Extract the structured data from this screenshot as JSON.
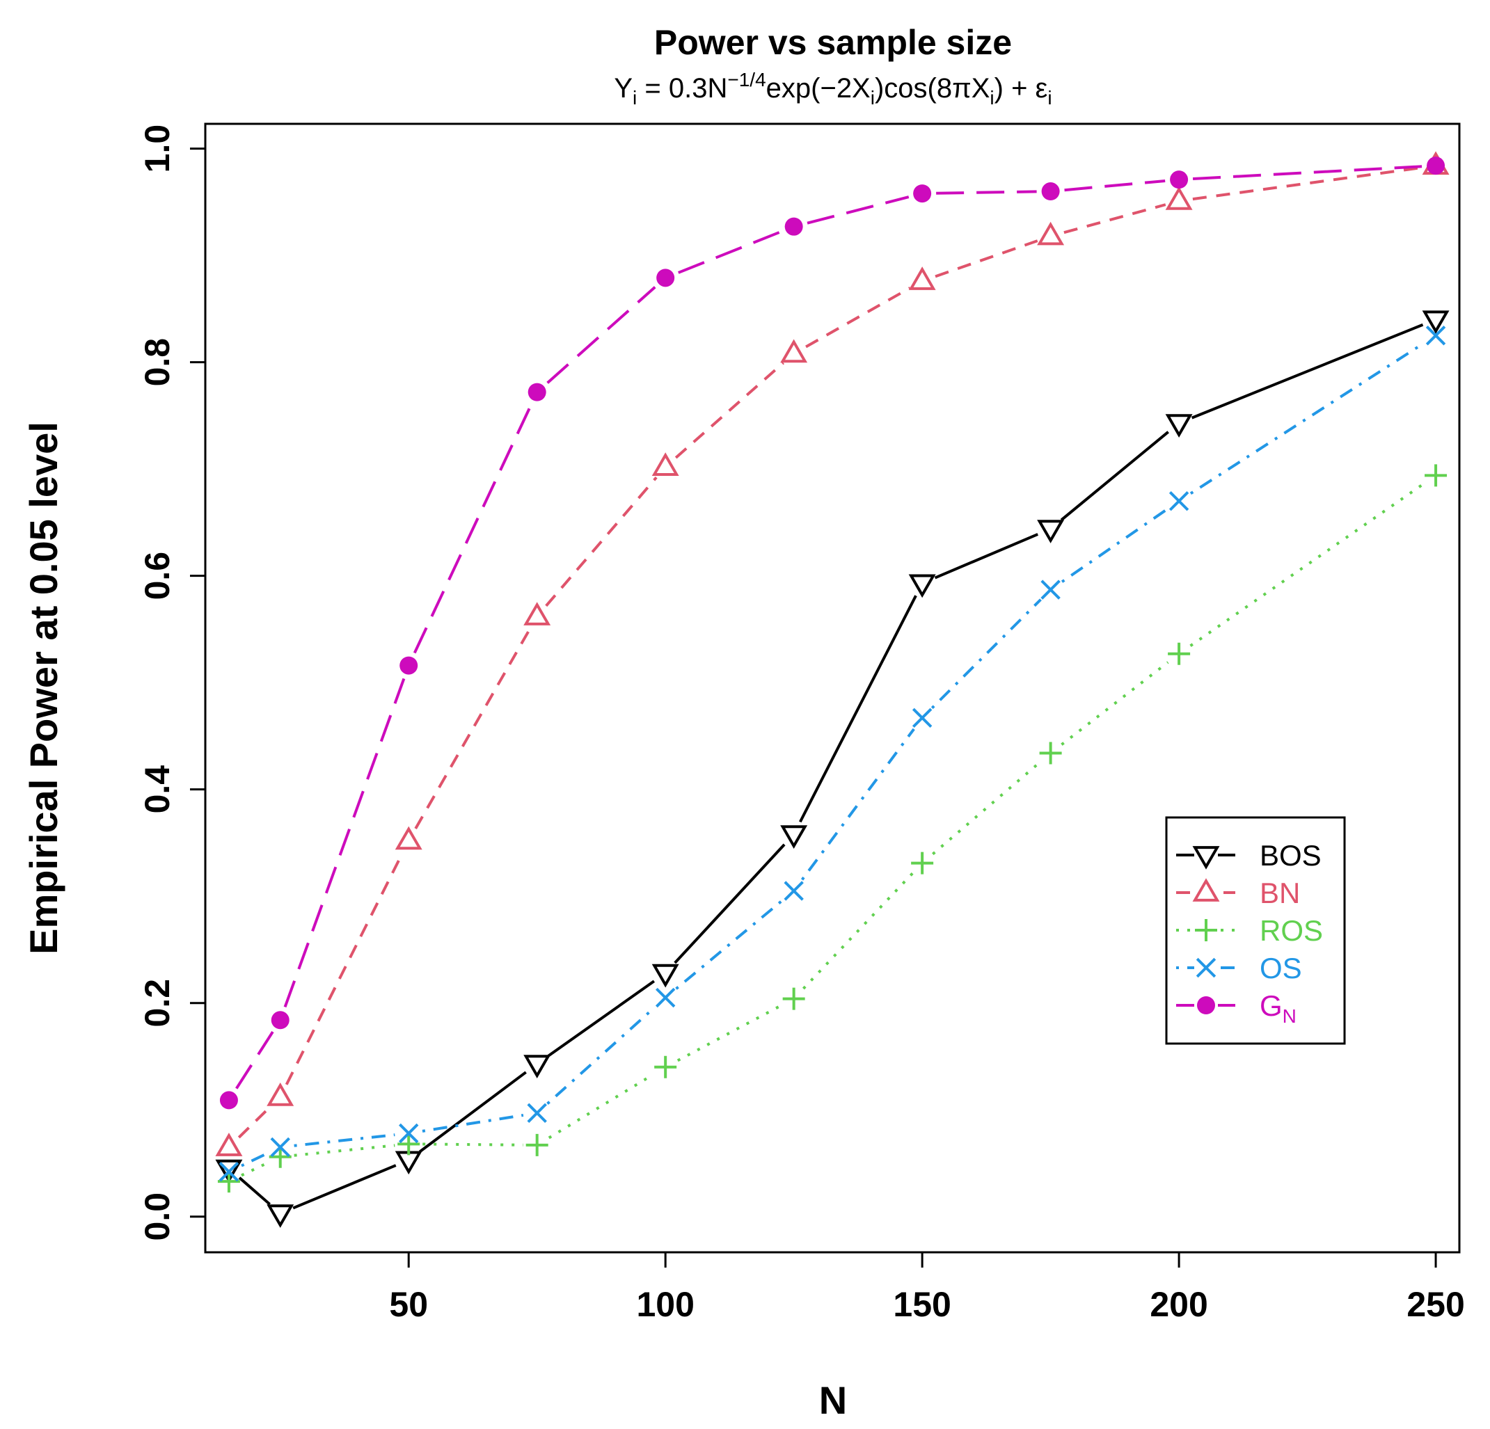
{
  "chart_data": {
    "type": "line",
    "title": "Power vs sample size",
    "subtitle": {
      "parts": [
        {
          "t": "Y"
        },
        {
          "t": "i",
          "sub": true
        },
        {
          "t": " = 0.3N"
        },
        {
          "t": "−1/4",
          "sup": true
        },
        {
          "t": "exp(−2X"
        },
        {
          "t": "i",
          "sub": true
        },
        {
          "t": ")cos(8πX"
        },
        {
          "t": "i",
          "sub": true
        },
        {
          "t": ") + ε"
        },
        {
          "t": "i",
          "sub": true
        }
      ]
    },
    "xlabel": "N",
    "ylabel": "Empirical Power at 0.05 level",
    "x": [
      15,
      25,
      50,
      75,
      100,
      125,
      150,
      175,
      200,
      250
    ],
    "xlim": [
      10.4,
      254.6
    ],
    "ylim": [
      -0.0334,
      1.0232
    ],
    "xticks": [
      50,
      100,
      150,
      200,
      250
    ],
    "yticks": [
      0.0,
      0.2,
      0.4,
      0.6,
      0.8,
      1.0
    ],
    "ytick_labels": [
      "0.0",
      "0.2",
      "0.4",
      "0.6",
      "0.8",
      "1.0"
    ],
    "legend_position": "right",
    "series": [
      {
        "name": "BOS",
        "color": "#000000",
        "dash": "none",
        "marker": "triangle-down",
        "values": [
          0.045,
          0.003,
          0.053,
          0.143,
          0.228,
          0.358,
          0.593,
          0.644,
          0.743,
          0.84
        ]
      },
      {
        "name": "BN",
        "color": "#DF536B",
        "dash": "dashed",
        "marker": "triangle-up",
        "values": [
          0.065,
          0.112,
          0.352,
          0.562,
          0.702,
          0.808,
          0.876,
          0.918,
          0.951,
          0.984
        ]
      },
      {
        "name": "ROS",
        "color": "#61D04F",
        "dash": "dotted",
        "marker": "plus",
        "values": [
          0.033,
          0.056,
          0.068,
          0.067,
          0.14,
          0.204,
          0.331,
          0.434,
          0.527,
          0.694
        ]
      },
      {
        "name": "OS",
        "color": "#2297E6",
        "dash": "dotdash",
        "marker": "cross",
        "values": [
          0.042,
          0.065,
          0.078,
          0.097,
          0.205,
          0.305,
          0.467,
          0.587,
          0.67,
          0.825
        ]
      },
      {
        "name": "G",
        "name_sub": "N",
        "color": "#CD0BBC",
        "dash": "longdash",
        "marker": "circle",
        "values": [
          0.109,
          0.184,
          0.516,
          0.772,
          0.879,
          0.927,
          0.958,
          0.96,
          0.971,
          0.984
        ]
      }
    ]
  }
}
